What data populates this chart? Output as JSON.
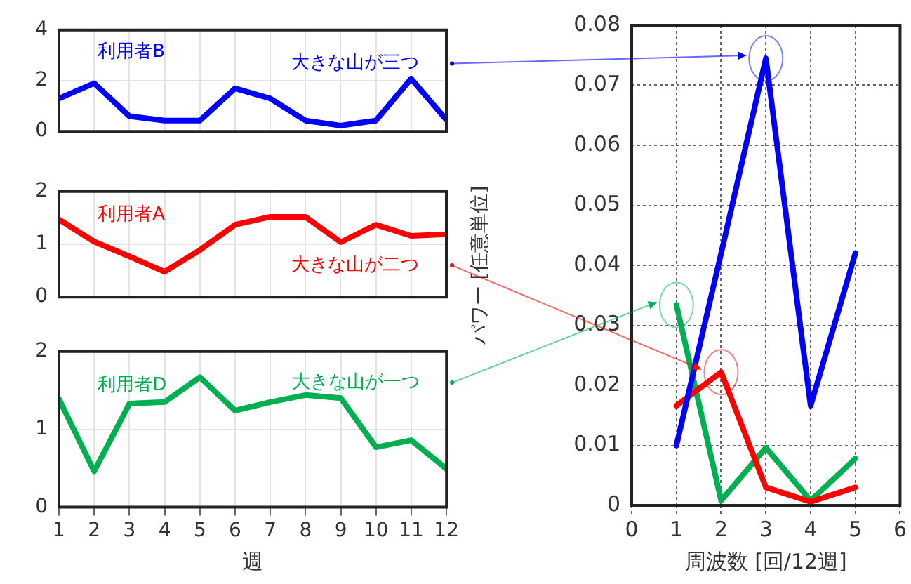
{
  "chart_data": [
    {
      "type": "line",
      "x": [
        1,
        2,
        3,
        4,
        5,
        6,
        7,
        8,
        9,
        10,
        11,
        12
      ],
      "xlim": [
        1,
        12
      ],
      "xticks": [
        1,
        2,
        3,
        4,
        5,
        6,
        7,
        8,
        9,
        10,
        11,
        12
      ],
      "ylim": [
        0,
        4
      ],
      "yticks": [
        0,
        2,
        4
      ],
      "grid": true,
      "tick_labels": "y",
      "marker": "none",
      "series": [
        {
          "name": "利用者B",
          "color": "#0000ff",
          "values": [
            1.3,
            1.9,
            0.6,
            0.43,
            0.43,
            1.7,
            1.3,
            0.43,
            0.23,
            0.43,
            2.08,
            0.46
          ]
        }
      ],
      "annotations": [
        "大きな山が三つ"
      ]
    },
    {
      "type": "line",
      "x": [
        1,
        2,
        3,
        4,
        5,
        6,
        7,
        8,
        9,
        10,
        11,
        12
      ],
      "xlim": [
        1,
        12
      ],
      "xticks": [
        1,
        2,
        3,
        4,
        5,
        6,
        7,
        8,
        9,
        10,
        11,
        12
      ],
      "ylim": [
        0,
        2
      ],
      "yticks": [
        0,
        1,
        2
      ],
      "grid": true,
      "tick_labels": "y",
      "marker": "none",
      "series": [
        {
          "name": "利用者A",
          "color": "#ff0000",
          "values": [
            1.47,
            1.05,
            0.77,
            0.48,
            0.89,
            1.37,
            1.52,
            1.52,
            1.04,
            1.37,
            1.16,
            1.19
          ]
        }
      ],
      "annotations": [
        "大きな山が二つ"
      ]
    },
    {
      "type": "line",
      "x": [
        1,
        2,
        3,
        4,
        5,
        6,
        7,
        8,
        9,
        10,
        11,
        12
      ],
      "xlim": [
        1,
        12
      ],
      "xticks": [
        1,
        2,
        3,
        4,
        5,
        6,
        7,
        8,
        9,
        10,
        11,
        12
      ],
      "ylim": [
        0,
        2
      ],
      "yticks": [
        0,
        1,
        2
      ],
      "grid": true,
      "xlabel": "週",
      "marker": "none",
      "series": [
        {
          "name": "利用者D",
          "color": "#00b050",
          "values": [
            1.39,
            0.46,
            1.33,
            1.35,
            1.67,
            1.24,
            1.35,
            1.44,
            1.4,
            0.77,
            0.86,
            0.49
          ]
        }
      ],
      "annotations": [
        "大きな山が一つ"
      ]
    },
    {
      "type": "line",
      "x": [
        1,
        2,
        3,
        4,
        5
      ],
      "xlim": [
        0,
        6
      ],
      "xticks": [
        0,
        1,
        2,
        3,
        4,
        5,
        6
      ],
      "ylim": [
        0,
        0.08
      ],
      "yticks": [
        0,
        0.01,
        0.02,
        0.03,
        0.04,
        0.05,
        0.06,
        0.07,
        0.08
      ],
      "grid": true,
      "xlabel": "周波数 [回/12週]",
      "ylabel": "パワー [任意単位]",
      "marker": "none",
      "line_style": "solid",
      "series": [
        {
          "color": "#0000ff",
          "values": [
            0.01,
            0.042,
            0.0745,
            0.0166,
            0.042
          ]
        },
        {
          "color": "#ff0000",
          "values": [
            0.0166,
            0.0222,
            0.003,
            0.0006,
            0.003
          ]
        },
        {
          "color": "#00b050",
          "values": [
            0.0334,
            0.0008,
            0.0096,
            0.0008,
            0.0078
          ]
        }
      ]
    }
  ]
}
